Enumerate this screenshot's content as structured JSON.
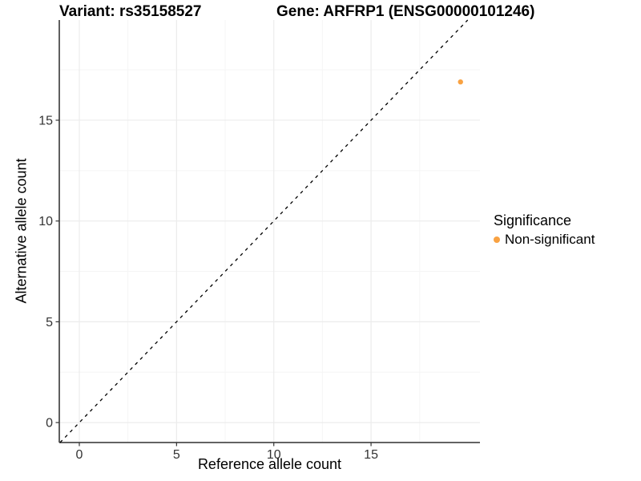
{
  "chart_data": {
    "type": "scatter",
    "title_left": "Variant: rs35158527",
    "title_right": "Gene: ARFRP1 (ENSG00000101246)",
    "xlabel": "Reference allele count",
    "ylabel": "Alternative allele count",
    "xlim": [
      -1.03,
      20.6
    ],
    "ylim": [
      -0.99,
      19.97
    ],
    "x_major_ticks": [
      0,
      5,
      10,
      15
    ],
    "y_major_ticks": [
      0,
      5,
      10,
      15
    ],
    "x_minor_ticks": [
      2.5,
      7.5,
      12.5,
      17.5
    ],
    "y_minor_ticks": [
      2.5,
      7.5,
      12.5,
      17.5
    ],
    "grid": true,
    "reference_line": {
      "equation": "y = x",
      "style": "dashed",
      "color": "#000000"
    },
    "series": [
      {
        "name": "Non-significant",
        "color": "#F9A242",
        "points": [
          {
            "x": 19.6,
            "y": 16.9
          }
        ]
      }
    ],
    "legend": {
      "title": "Significance",
      "position": "right",
      "items": [
        {
          "label": "Non-significant",
          "color": "#F9A242"
        }
      ]
    },
    "colors": {
      "grid_major": "#ECECEC",
      "grid_minor": "#F5F5F5",
      "axis_line": "#4D4D4D",
      "tick_mark": "#333333",
      "tick_label": "#333333"
    },
    "point_radius_px": 3.2
  }
}
